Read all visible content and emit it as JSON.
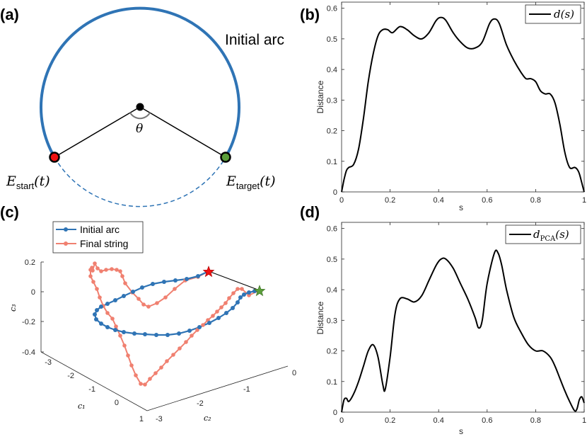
{
  "panel_labels": [
    "(a)",
    "(b)",
    "(c)",
    "(d)"
  ],
  "colors": {
    "arc_blue": "#2f74b5",
    "final_salmon": "#f08070",
    "start_red": "#e11",
    "target_green": "#5a9e3a",
    "line_black": "#000000",
    "axis_gray": "#262626"
  },
  "panel_a": {
    "arc_label": "Initial arc",
    "theta": "θ",
    "start_label": {
      "E": "E",
      "sub": "start",
      "arg": "(t)"
    },
    "target_label": {
      "E": "E",
      "sub": "target",
      "arg": "(t)"
    }
  },
  "panel_c": {
    "legend": [
      "Initial arc",
      "Final string"
    ],
    "z_ticks": [
      "0.2",
      "0",
      "-0.2",
      "-0.4"
    ],
    "c1_ticks": [
      "-3",
      "-2",
      "-1",
      "0",
      "1"
    ],
    "c2_ticks": [
      "0",
      "-1",
      "-2",
      "-3"
    ],
    "xlabel": "c₁",
    "ylabel": "c₂",
    "zlabel": "c₃"
  },
  "chart_data": [
    {
      "type": "line",
      "panel": "(b)",
      "title": "",
      "xlabel": "s",
      "ylabel": "Distance",
      "legend": "d(s)",
      "xlim": [
        0,
        1
      ],
      "ylim": [
        0,
        0.62
      ],
      "xticks": [
        "0",
        "0.2",
        "0.4",
        "0.6",
        "0.8",
        "1"
      ],
      "yticks": [
        "0",
        "0.1",
        "0.2",
        "0.3",
        "0.4",
        "0.5",
        "0.6"
      ],
      "x": [
        0,
        0.01,
        0.02,
        0.03,
        0.05,
        0.07,
        0.09,
        0.11,
        0.13,
        0.15,
        0.17,
        0.19,
        0.21,
        0.24,
        0.27,
        0.3,
        0.33,
        0.36,
        0.39,
        0.41,
        0.43,
        0.46,
        0.49,
        0.52,
        0.55,
        0.58,
        0.61,
        0.63,
        0.65,
        0.68,
        0.71,
        0.74,
        0.76,
        0.78,
        0.8,
        0.82,
        0.84,
        0.86,
        0.88,
        0.9,
        0.92,
        0.94,
        0.96,
        0.97,
        0.98,
        0.99,
        1.0
      ],
      "values": [
        0,
        0.04,
        0.07,
        0.08,
        0.09,
        0.14,
        0.24,
        0.36,
        0.45,
        0.51,
        0.53,
        0.53,
        0.52,
        0.54,
        0.53,
        0.51,
        0.5,
        0.52,
        0.56,
        0.57,
        0.56,
        0.52,
        0.49,
        0.47,
        0.47,
        0.49,
        0.55,
        0.565,
        0.55,
        0.48,
        0.43,
        0.39,
        0.37,
        0.37,
        0.36,
        0.33,
        0.32,
        0.32,
        0.29,
        0.22,
        0.13,
        0.08,
        0.08,
        0.075,
        0.06,
        0.03,
        0
      ]
    },
    {
      "type": "line",
      "panel": "(d)",
      "title": "",
      "xlabel": "s",
      "ylabel": "Distance",
      "legend": "d_PCA(s)",
      "xlim": [
        0,
        1
      ],
      "ylim": [
        0,
        0.62
      ],
      "xticks": [
        "0",
        "0.2",
        "0.4",
        "0.6",
        "0.8",
        "1"
      ],
      "yticks": [
        "0",
        "0.1",
        "0.2",
        "0.3",
        "0.4",
        "0.5",
        "0.6"
      ],
      "x": [
        0,
        0.01,
        0.02,
        0.03,
        0.05,
        0.07,
        0.09,
        0.11,
        0.13,
        0.15,
        0.17,
        0.18,
        0.2,
        0.22,
        0.24,
        0.27,
        0.3,
        0.33,
        0.36,
        0.39,
        0.41,
        0.43,
        0.46,
        0.49,
        0.52,
        0.55,
        0.565,
        0.58,
        0.6,
        0.63,
        0.645,
        0.66,
        0.68,
        0.71,
        0.74,
        0.77,
        0.8,
        0.83,
        0.86,
        0.88,
        0.9,
        0.92,
        0.94,
        0.96,
        0.97,
        0.98,
        0.99,
        1.0
      ],
      "values": [
        0,
        0.04,
        0.045,
        0.035,
        0.06,
        0.1,
        0.15,
        0.2,
        0.22,
        0.18,
        0.09,
        0.075,
        0.18,
        0.32,
        0.37,
        0.37,
        0.36,
        0.38,
        0.43,
        0.48,
        0.5,
        0.5,
        0.47,
        0.42,
        0.37,
        0.31,
        0.275,
        0.3,
        0.42,
        0.52,
        0.52,
        0.48,
        0.4,
        0.31,
        0.26,
        0.22,
        0.2,
        0.2,
        0.18,
        0.15,
        0.11,
        0.07,
        0.035,
        0.005,
        0.01,
        0.04,
        0.05,
        0.03
      ]
    }
  ]
}
